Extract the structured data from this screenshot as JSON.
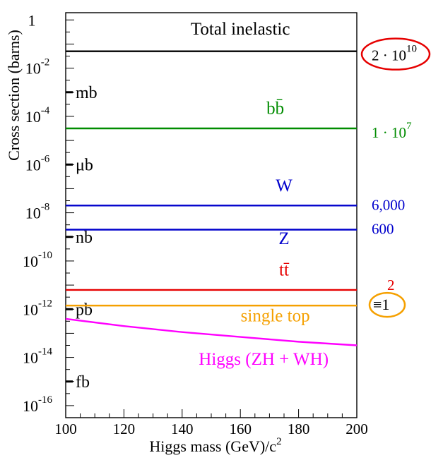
{
  "chart_data": {
    "type": "line",
    "title": "",
    "xlabel": "Higgs mass (GeV)/c",
    "xlabel_sup": "2",
    "ylabel": "Cross section (barns)",
    "xlim": [
      100,
      200
    ],
    "ylim_log10": [
      -16.5,
      0.3
    ],
    "y_log_scale": true,
    "x_ticks": [
      100,
      120,
      140,
      160,
      180,
      200
    ],
    "y_ticks": [
      {
        "log": 0,
        "base": "1",
        "exp": ""
      },
      {
        "log": -2,
        "base": "10",
        "exp": "-2"
      },
      {
        "log": -4,
        "base": "10",
        "exp": "-4"
      },
      {
        "log": -6,
        "base": "10",
        "exp": "-6"
      },
      {
        "log": -8,
        "base": "10",
        "exp": "-8"
      },
      {
        "log": -10,
        "base": "10",
        "exp": "-10"
      },
      {
        "log": -12,
        "base": "10",
        "exp": "-12"
      },
      {
        "log": -14,
        "base": "10",
        "exp": "-14"
      },
      {
        "log": -16,
        "base": "10",
        "exp": "-16"
      }
    ],
    "unit_labels": [
      {
        "text": "mb",
        "log": -3
      },
      {
        "text": "μb",
        "log": -6
      },
      {
        "text": "nb",
        "log": -9
      },
      {
        "text": "pb",
        "log": -12
      },
      {
        "text": "fb",
        "log": -15
      }
    ],
    "series": [
      {
        "name": "Total inelastic",
        "color": "#000000",
        "x": [
          100,
          200
        ],
        "y_log10": [
          -1.3,
          -1.3
        ],
        "label_pos": [
          160,
          -0.6
        ],
        "label_color": "#000000",
        "rate": "2 · 10",
        "rate_exp": "10",
        "rate_color": "#000000",
        "rate_circled": true,
        "circle_color": "#e60000"
      },
      {
        "name": "bb̄",
        "color": "#008c00",
        "x": [
          100,
          200
        ],
        "y_log10": [
          -4.5,
          -4.5
        ],
        "label_pos": [
          172,
          -3.9
        ],
        "label_color": "#008c00",
        "rate": "1 · 10",
        "rate_exp": "7",
        "rate_color": "#008c00",
        "rate_circled": false
      },
      {
        "name": "W",
        "color": "#0000cc",
        "x": [
          100,
          200
        ],
        "y_log10": [
          -7.7,
          -7.7
        ],
        "label_pos": [
          175,
          -7.1
        ],
        "label_color": "#0000cc",
        "rate": "6,000",
        "rate_exp": "",
        "rate_color": "#0000cc",
        "rate_circled": false
      },
      {
        "name": "Z",
        "color": "#0000cc",
        "x": [
          100,
          200
        ],
        "y_log10": [
          -8.7,
          -8.7
        ],
        "label_pos": [
          175,
          -9.3
        ],
        "label_color": "#0000cc",
        "rate": "600",
        "rate_exp": "",
        "rate_color": "#0000cc",
        "rate_circled": false
      },
      {
        "name": "tt̄",
        "color": "#e60000",
        "x": [
          100,
          200
        ],
        "y_log10": [
          -11.2,
          -11.2
        ],
        "label_pos": [
          175,
          -10.6
        ],
        "label_color": "#e60000",
        "rate": "2",
        "rate_exp": "",
        "rate_color": "#e60000",
        "rate_circled": false
      },
      {
        "name": "single top",
        "color": "#f5a000",
        "x": [
          100,
          200
        ],
        "y_log10": [
          -11.85,
          -11.85
        ],
        "label_pos": [
          172,
          -12.5
        ],
        "label_color": "#f5a000",
        "rate": "≡1",
        "rate_exp": "",
        "rate_color": "#000000",
        "rate_circled": true,
        "circle_color": "#f5a000"
      },
      {
        "name": "Higgs (ZH + WH)",
        "color": "#ff00ff",
        "x": [
          100,
          120,
          140,
          160,
          180,
          200
        ],
        "y_log10": [
          -12.4,
          -12.7,
          -12.95,
          -13.15,
          -13.35,
          -13.5
        ],
        "label_pos": [
          168,
          -14.3
        ],
        "label_color": "#ff00ff",
        "rate": "",
        "rate_exp": "",
        "rate_color": "#000000",
        "rate_circled": false
      }
    ],
    "grid": false,
    "legend": "none"
  }
}
